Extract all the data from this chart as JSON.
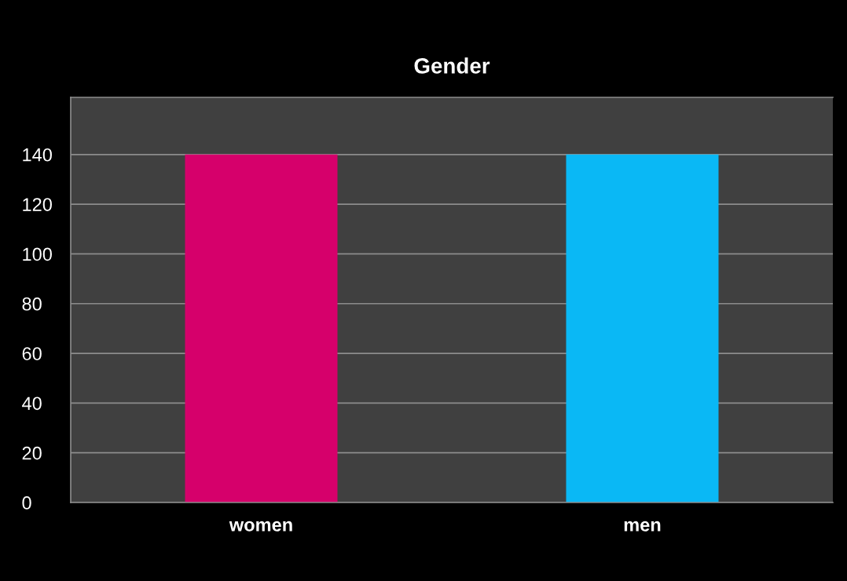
{
  "chart_data": {
    "type": "bar",
    "title": "Gender",
    "categories": [
      "women",
      "men"
    ],
    "values": [
      140,
      140
    ],
    "colors": [
      "#d6006b",
      "#0ab8f5"
    ],
    "ylim": [
      0,
      163
    ],
    "yticks": [
      0,
      20,
      40,
      60,
      80,
      100,
      120,
      140
    ],
    "grid": "y"
  }
}
